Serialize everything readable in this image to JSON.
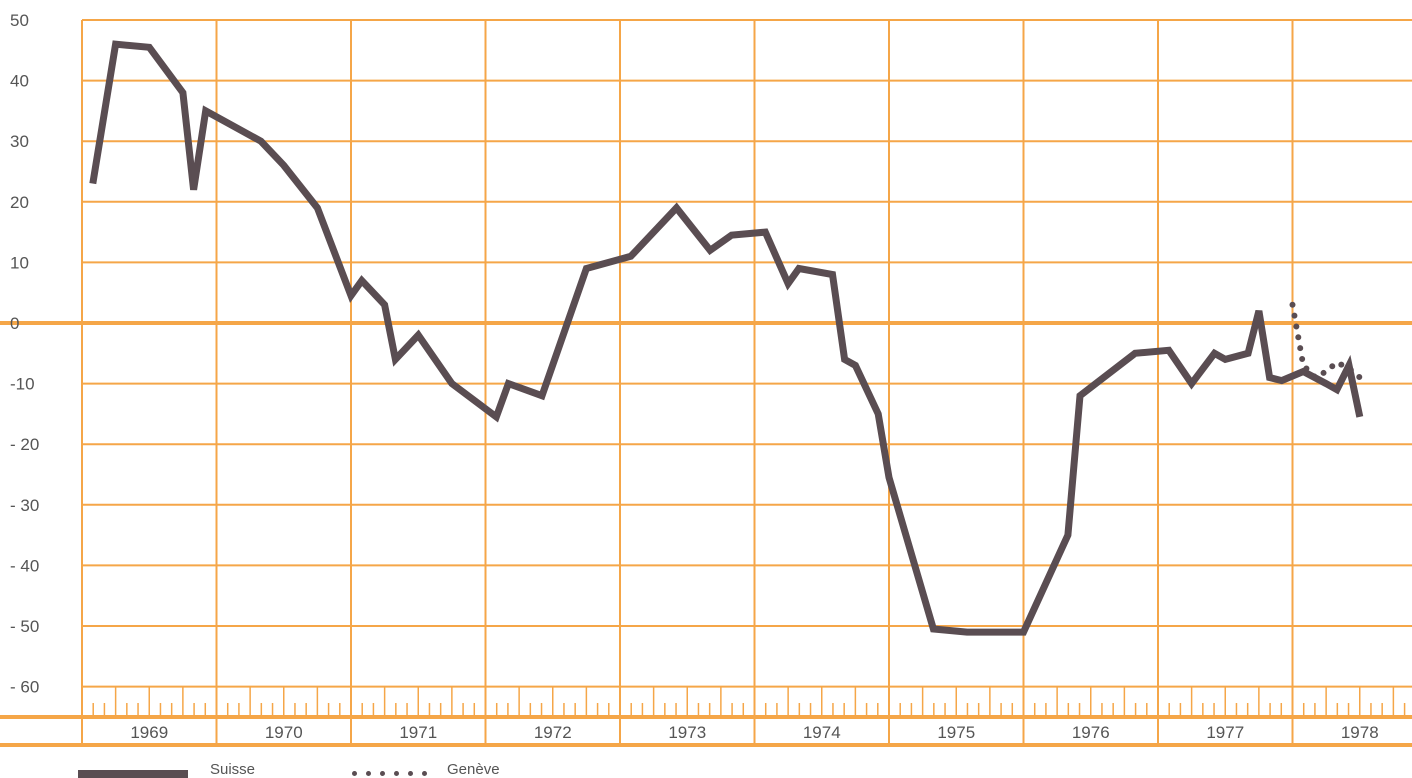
{
  "colors": {
    "grid": "#f5a648",
    "line": "#5a4d52",
    "text": "#555555"
  },
  "chart_data": {
    "type": "line",
    "title": "",
    "xlabel": "",
    "ylabel": "",
    "x_range": [
      1969,
      1979
    ],
    "ylim": [
      -60,
      50
    ],
    "y_ticks": [
      50,
      40,
      30,
      20,
      10,
      0,
      -10,
      -20,
      -30,
      -40,
      -50,
      -60
    ],
    "y_tick_labels": [
      "50",
      "40",
      "30",
      "20",
      "10",
      "0",
      "-10",
      "- 20",
      "- 30",
      "- 40",
      "- 50",
      "- 60"
    ],
    "x_tick_labels": [
      "1969",
      "1970",
      "1971",
      "1972",
      "1973",
      "1974",
      "1975",
      "1976",
      "1977",
      "1978"
    ],
    "grid": true,
    "legend_position": "bottom-left",
    "series": [
      {
        "name": "Suisse",
        "style": "solid",
        "points": [
          [
            1969.08,
            23
          ],
          [
            1969.25,
            46
          ],
          [
            1969.5,
            45.5
          ],
          [
            1969.75,
            38
          ],
          [
            1969.83,
            22
          ],
          [
            1969.92,
            35
          ],
          [
            1970.33,
            30
          ],
          [
            1970.5,
            26
          ],
          [
            1970.75,
            19
          ],
          [
            1971.0,
            4.5
          ],
          [
            1971.08,
            7
          ],
          [
            1971.25,
            3
          ],
          [
            1971.33,
            -6
          ],
          [
            1971.5,
            -2
          ],
          [
            1971.75,
            -10
          ],
          [
            1972.08,
            -15.5
          ],
          [
            1972.17,
            -10
          ],
          [
            1972.42,
            -12
          ],
          [
            1972.75,
            9
          ],
          [
            1973.08,
            11
          ],
          [
            1973.42,
            19
          ],
          [
            1973.67,
            12
          ],
          [
            1973.83,
            14.5
          ],
          [
            1974.08,
            15
          ],
          [
            1974.25,
            6.5
          ],
          [
            1974.33,
            9
          ],
          [
            1974.58,
            8
          ],
          [
            1974.67,
            -6
          ],
          [
            1974.75,
            -7
          ],
          [
            1974.92,
            -15
          ],
          [
            1975.0,
            -25.5
          ],
          [
            1975.33,
            -50.5
          ],
          [
            1975.58,
            -51
          ],
          [
            1976.0,
            -51
          ],
          [
            1976.33,
            -35
          ],
          [
            1976.42,
            -12
          ],
          [
            1976.83,
            -5
          ],
          [
            1977.08,
            -4.5
          ],
          [
            1977.25,
            -10
          ],
          [
            1977.42,
            -5
          ],
          [
            1977.5,
            -6
          ],
          [
            1977.67,
            -5
          ],
          [
            1977.75,
            2
          ],
          [
            1977.83,
            -9
          ],
          [
            1977.92,
            -9.5
          ],
          [
            1978.08,
            -8
          ],
          [
            1978.25,
            -10
          ],
          [
            1978.33,
            -11
          ],
          [
            1978.42,
            -7
          ],
          [
            1978.5,
            -15.5
          ]
        ]
      },
      {
        "name": "Genève",
        "style": "dotted",
        "points": [
          [
            1978.0,
            3
          ],
          [
            1978.08,
            -7
          ],
          [
            1978.17,
            -9
          ],
          [
            1978.25,
            -8
          ],
          [
            1978.33,
            -6.5
          ],
          [
            1978.42,
            -7.5
          ],
          [
            1978.5,
            -9
          ]
        ]
      }
    ]
  }
}
